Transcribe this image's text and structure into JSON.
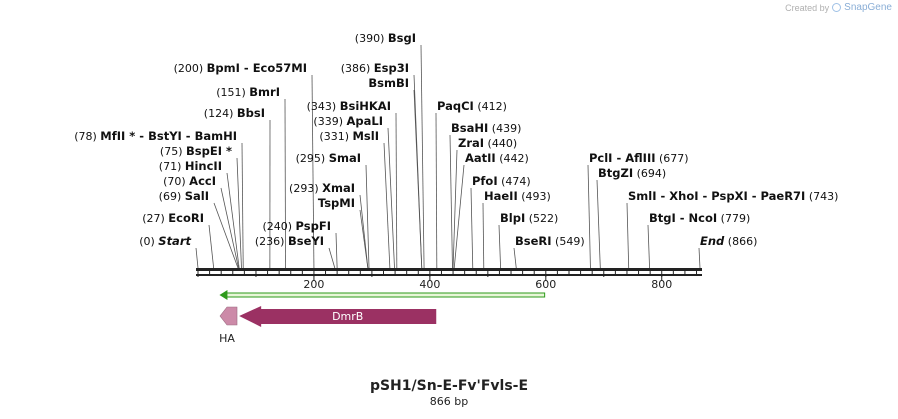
{
  "credit": {
    "prefix": "Created by",
    "brand": "SnapGene"
  },
  "map": {
    "title": "pSH1/Sn-E-Fv'Fvls-E",
    "size_label": "866 bp",
    "length_bp": 866,
    "ticks": [
      "200",
      "400",
      "600",
      "800"
    ],
    "colors": {
      "feature": "#9b3163",
      "feature_small": "#cc8aa8",
      "primer": "#2d9a1a",
      "primer_fill": "#e8f6d8",
      "ruler": "#222222"
    }
  },
  "sites": [
    {
      "pos": "(0)",
      "name": "Start",
      "bp": 0,
      "style": "italic"
    },
    {
      "pos": "(27)",
      "name": "EcoRI",
      "bp": 27
    },
    {
      "pos": "(69)",
      "name": "SalI",
      "bp": 69
    },
    {
      "pos": "(70)",
      "name": "AccI",
      "bp": 70
    },
    {
      "pos": "(71)",
      "name": "HincII",
      "bp": 71
    },
    {
      "pos": "(75)",
      "name": "BspEI *",
      "bp": 75
    },
    {
      "pos": "(78)",
      "name": "MfII * - BstYI - BamHI",
      "bp": 78
    },
    {
      "pos": "(124)",
      "name": "BbsI",
      "bp": 124
    },
    {
      "pos": "(151)",
      "name": "BmrI",
      "bp": 151
    },
    {
      "pos": "(200)",
      "name": "BpmI - Eco57MI",
      "bp": 200
    },
    {
      "pos": "(236)",
      "name": "BseYI",
      "bp": 236
    },
    {
      "pos": "(240)",
      "name": "PspFI",
      "bp": 240
    },
    {
      "pos": "(293)",
      "name": "XmaI",
      "bp": 293
    },
    {
      "pos": "",
      "name": "TspMI",
      "bp": 293
    },
    {
      "pos": "(295)",
      "name": "SmaI",
      "bp": 295
    },
    {
      "pos": "(331)",
      "name": "MslI",
      "bp": 331
    },
    {
      "pos": "(339)",
      "name": "ApaLI",
      "bp": 339
    },
    {
      "pos": "(343)",
      "name": "BsiHKAI",
      "bp": 343
    },
    {
      "pos": "(386)",
      "name": "Esp3I",
      "bp": 386
    },
    {
      "pos": "",
      "name": "BsmBI",
      "bp": 386
    },
    {
      "pos": "(390)",
      "name": "BsgI",
      "bp": 390
    },
    {
      "pos": "(412)",
      "name": "PaqCI",
      "bp": 412,
      "pos_after": true
    },
    {
      "pos": "(439)",
      "name": "BsaHI",
      "bp": 439,
      "pos_after": true
    },
    {
      "pos": "(440)",
      "name": "ZraI",
      "bp": 440,
      "pos_after": true
    },
    {
      "pos": "(442)",
      "name": "AatII",
      "bp": 442,
      "pos_after": true
    },
    {
      "pos": "(474)",
      "name": "PfoI",
      "bp": 474,
      "pos_after": true
    },
    {
      "pos": "(493)",
      "name": "HaeII",
      "bp": 493,
      "pos_after": true
    },
    {
      "pos": "(522)",
      "name": "BlpI",
      "bp": 522,
      "pos_after": true
    },
    {
      "pos": "(549)",
      "name": "BseRI",
      "bp": 549,
      "pos_after": true
    },
    {
      "pos": "(677)",
      "name": "PclI - AflIII",
      "bp": 677,
      "pos_after": true
    },
    {
      "pos": "(694)",
      "name": "BtgZI",
      "bp": 694,
      "pos_after": true
    },
    {
      "pos": "(743)",
      "name": "SmlI - XhoI - PspXI - PaeR7I",
      "bp": 743,
      "pos_after": true
    },
    {
      "pos": "(779)",
      "name": "BtgI - NcoI",
      "bp": 779,
      "pos_after": true
    },
    {
      "pos": "(866)",
      "name": "End",
      "bp": 866,
      "pos_after": true,
      "style": "italic"
    }
  ],
  "features": [
    {
      "label": "DmrB",
      "start_bp": 71,
      "end_bp": 411,
      "direction": "reverse"
    },
    {
      "label": "HA",
      "start_bp": 38,
      "end_bp": 69,
      "direction": "reverse"
    }
  ],
  "primer": {
    "start_bp": 37,
    "end_bp": 598,
    "direction": "reverse"
  }
}
